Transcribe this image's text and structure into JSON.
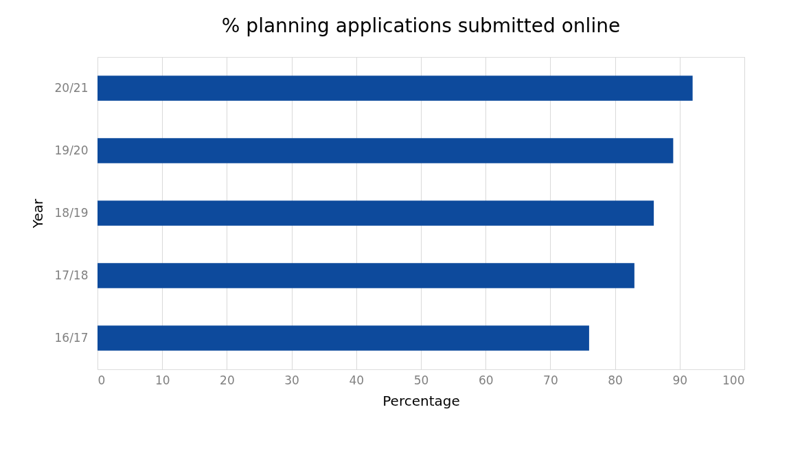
{
  "chart_data": {
    "type": "bar",
    "orientation": "horizontal",
    "title": "% planning applications submitted online",
    "xlabel": "Percentage",
    "ylabel": "Year",
    "categories": [
      "20/21",
      "19/20",
      "18/19",
      "17/18",
      "16/17"
    ],
    "values": [
      92,
      89,
      86,
      83,
      76
    ],
    "color": "#0d4a9c",
    "xlim": [
      0,
      100
    ],
    "xticks": [
      0,
      10,
      20,
      30,
      40,
      50,
      60,
      70,
      80,
      90,
      100
    ],
    "grid": "x"
  }
}
